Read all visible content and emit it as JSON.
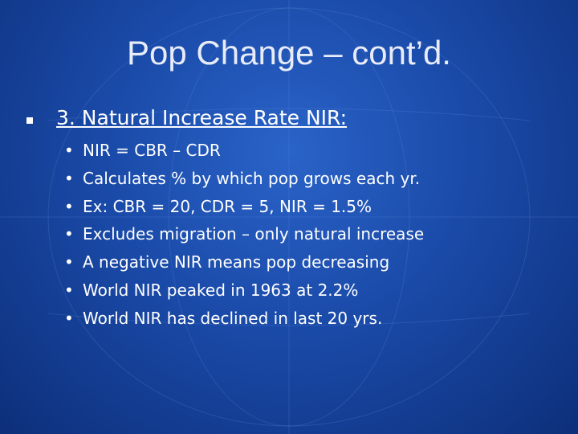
{
  "title": "Pop Change – cont’d.",
  "heading": "3. Natural Increase Rate NIR:",
  "bullets": [
    "NIR = CBR – CDR",
    "Calculates % by which pop grows each yr.",
    "Ex: CBR = 20, CDR = 5, NIR = 1.5%",
    "Excludes migration – only natural increase",
    "A negative NIR means pop decreasing",
    "World NIR peaked in 1963 at 2.2%",
    "World NIR has declined in last 20 yrs."
  ]
}
